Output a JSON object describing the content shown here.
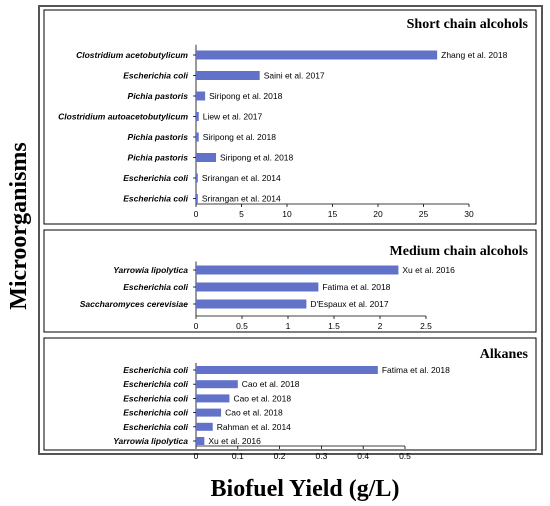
{
  "figure": {
    "xlabel": "Biofuel Yield (g/L)",
    "ylabel": "Microorganisms"
  },
  "chart_data": [
    {
      "type": "bar",
      "orientation": "horizontal",
      "title": "Short chain alcohols",
      "categories": [
        "Clostridium acetobutylicum",
        "Escherichia coli",
        "Pichia pastoris",
        "Clostridium autoacetobutylicum",
        "Pichia pastoris",
        "Pichia pastoris",
        "Escherichia coli",
        "Escherichia coli"
      ],
      "values": [
        26.5,
        7.0,
        1.0,
        0.3,
        0.3,
        2.2,
        0.2,
        0.2
      ],
      "labels": [
        "Zhang et al. 2018",
        "Saini et al. 2017",
        "Siripong et al. 2018",
        "Liew et al. 2017",
        "Siripong et al. 2018",
        "Siripong et al. 2018",
        "Srirangan et al. 2014",
        "Srirangan et al. 2014"
      ],
      "xlim": [
        0,
        30
      ],
      "xticks": [
        0,
        5,
        10,
        15,
        20,
        25,
        30
      ],
      "xtick_labels": [
        "0",
        "5",
        "10",
        "15",
        "20",
        "25",
        "30"
      ],
      "bar_color": "#6272c8"
    },
    {
      "type": "bar",
      "orientation": "horizontal",
      "title": "Medium chain alcohols",
      "categories": [
        "Yarrowia lipolytica",
        "Escherichia coli",
        "Saccharomyces cerevisiae"
      ],
      "values": [
        2.2,
        1.33,
        1.2
      ],
      "labels": [
        "Xu et al. 2016",
        "Fatima et al. 2018",
        "D'Espaux et al. 2017"
      ],
      "xlim": [
        0,
        2.5
      ],
      "xticks": [
        0,
        0.5,
        1,
        1.5,
        2,
        2.5
      ],
      "xtick_labels": [
        "0",
        "0.5",
        "1",
        "1.5",
        "2",
        "2.5"
      ],
      "bar_color": "#6272c8"
    },
    {
      "type": "bar",
      "orientation": "horizontal",
      "title": "Alkanes",
      "categories": [
        "Escherichia coli",
        "Escherichia coli",
        "Escherichia coli",
        "Escherichia coli",
        "Escherichia coli",
        "Yarrowia lipolytica"
      ],
      "values": [
        0.435,
        0.1,
        0.08,
        0.06,
        0.04,
        0.02
      ],
      "labels": [
        "Fatima et al. 2018",
        "Cao et al. 2018",
        "Cao et al. 2018",
        "Cao et al. 2018",
        "Rahman et al. 2014",
        "Xu et al. 2016"
      ],
      "xlim": [
        0,
        0.5
      ],
      "xticks": [
        0,
        0.1,
        0.2,
        0.3,
        0.4,
        0.5
      ],
      "xtick_labels": [
        "0",
        "0.1",
        "0.2",
        "0.3",
        "0.4",
        "0.5"
      ],
      "bar_color": "#6272c8"
    }
  ]
}
